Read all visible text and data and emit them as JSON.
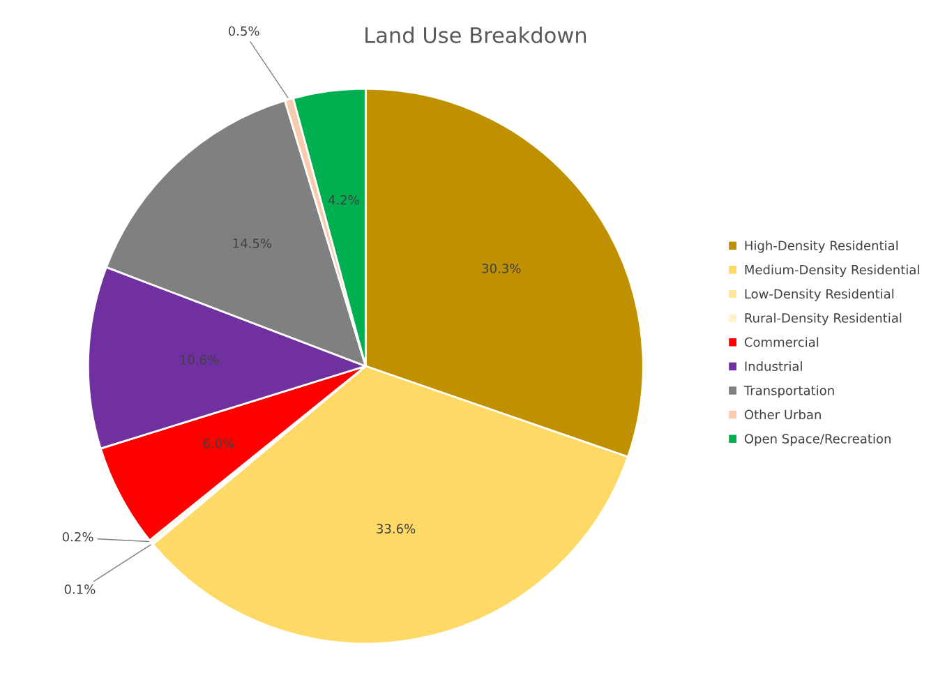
{
  "chart_data": {
    "type": "pie",
    "title": "Land Use Breakdown",
    "categories": [
      "High-Density Residential",
      "Medium-Density Residential",
      "Low-Density Residential",
      "Rural-Density Residential",
      "Commercial",
      "Industrial",
      "Transportation",
      "Other Urban",
      "Open Space/Recreation"
    ],
    "values": [
      30.3,
      33.6,
      0.1,
      0.2,
      6.0,
      10.6,
      14.5,
      0.5,
      4.2
    ],
    "value_labels": [
      "30.3%",
      "33.6%",
      "0.1%",
      "0.2%",
      "6.0%",
      "10.6%",
      "14.5%",
      "0.5%",
      "4.2%"
    ],
    "colors": [
      "#bf9000",
      "#ffd966",
      "#ffe699",
      "#fff2cc",
      "#ff0000",
      "#7030a0",
      "#808080",
      "#f8cbad",
      "#00b050"
    ],
    "legend": "right"
  }
}
